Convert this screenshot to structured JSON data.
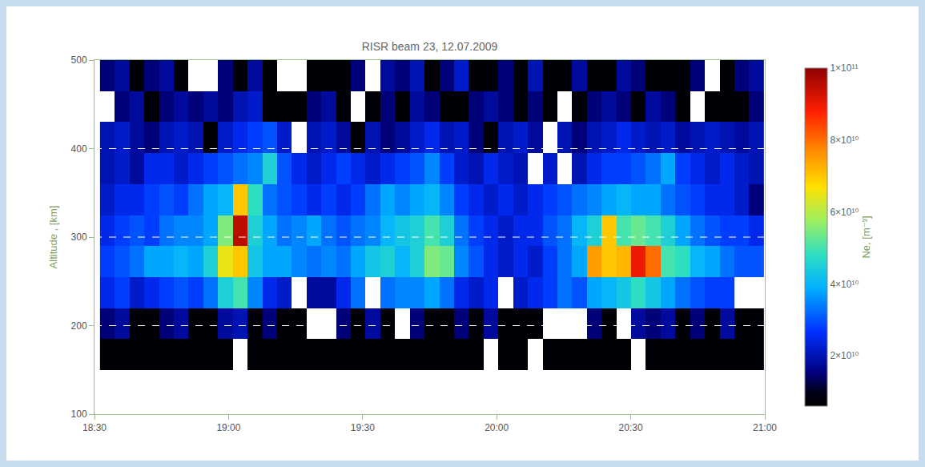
{
  "chart_data": {
    "type": "heatmap",
    "title": "RISR beam 23, 12.07.2009",
    "y_label": "Altitude , [km]",
    "colorbar_title": "Ne, [m⁻³]",
    "x": [
      18.548,
      18.603,
      18.658,
      18.713,
      18.768,
      18.823,
      18.878,
      18.933,
      18.988,
      19.043,
      19.098,
      19.153,
      19.208,
      19.263,
      19.318,
      19.373,
      19.428,
      19.483,
      19.538,
      19.593,
      19.648,
      19.703,
      19.758,
      19.813,
      19.868,
      19.923,
      19.978,
      20.033,
      20.088,
      20.143,
      20.198,
      20.253,
      20.308,
      20.363,
      20.418,
      20.473,
      20.528,
      20.583,
      20.638,
      20.693,
      20.748,
      20.803,
      20.858,
      20.913,
      20.968
    ],
    "y": [
      167.5,
      202.5,
      237.5,
      272.5,
      307.5,
      342.5,
      377.5,
      412.5,
      447.5,
      482.5
    ],
    "z": [
      [
        7000000000.0,
        7000000000.0,
        7000000000.0,
        7000000000.0,
        7000000000.0,
        7000000000.0,
        7000000000.0,
        7000000000.0,
        7000000000.0,
        null,
        7000000000.0,
        7000000000.0,
        7000000000.0,
        7000000000.0,
        7000000000.0,
        7000000000.0,
        7000000000.0,
        7000000000.0,
        7000000000.0,
        7000000000.0,
        7000000000.0,
        7000000000.0,
        7000000000.0,
        7000000000.0,
        7000000000.0,
        7000000000.0,
        null,
        7000000000.0,
        7000000000.0,
        null,
        7000000000.0,
        7000000000.0,
        7000000000.0,
        7000000000.0,
        7000000000.0,
        7000000000.0,
        null,
        7000000000.0,
        7000000000.0,
        7000000000.0,
        7000000000.0,
        7000000000.0,
        7000000000.0,
        7000000000.0,
        7000000000.0
      ],
      [
        15000000000.0,
        18000000000.0,
        7000000000.0,
        7000000000.0,
        15000000000.0,
        18000000000.0,
        7000000000.0,
        7000000000.0,
        18000000000.0,
        20000000000.0,
        7000000000.0,
        15000000000.0,
        7000000000.0,
        7000000000.0,
        null,
        null,
        15000000000.0,
        7000000000.0,
        18000000000.0,
        7000000000.0,
        null,
        15000000000.0,
        7000000000.0,
        7000000000.0,
        15000000000.0,
        7000000000.0,
        18000000000.0,
        7000000000.0,
        7000000000.0,
        7000000000.0,
        null,
        null,
        null,
        15000000000.0,
        7000000000.0,
        null,
        18000000000.0,
        15000000000.0,
        18000000000.0,
        7000000000.0,
        15000000000.0,
        7000000000.0,
        18000000000.0,
        7000000000.0,
        7000000000.0
      ],
      [
        25000000000.0,
        28000000000.0,
        22000000000.0,
        25000000000.0,
        28000000000.0,
        30000000000.0,
        28000000000.0,
        33000000000.0,
        45000000000.0,
        50000000000.0,
        35000000000.0,
        25000000000.0,
        22000000000.0,
        null,
        18000000000.0,
        18000000000.0,
        25000000000.0,
        33000000000.0,
        null,
        33000000000.0,
        35000000000.0,
        35000000000.0,
        38000000000.0,
        33000000000.0,
        25000000000.0,
        22000000000.0,
        25000000000.0,
        null,
        22000000000.0,
        25000000000.0,
        28000000000.0,
        33000000000.0,
        30000000000.0,
        38000000000.0,
        40000000000.0,
        43000000000.0,
        48000000000.0,
        43000000000.0,
        38000000000.0,
        33000000000.0,
        30000000000.0,
        28000000000.0,
        28000000000.0,
        null,
        null
      ],
      [
        28000000000.0,
        30000000000.0,
        33000000000.0,
        38000000000.0,
        38000000000.0,
        40000000000.0,
        38000000000.0,
        45000000000.0,
        65000000000.0,
        70000000000.0,
        43000000000.0,
        38000000000.0,
        38000000000.0,
        35000000000.0,
        33000000000.0,
        35000000000.0,
        33000000000.0,
        38000000000.0,
        43000000000.0,
        45000000000.0,
        40000000000.0,
        45000000000.0,
        55000000000.0,
        53000000000.0,
        35000000000.0,
        30000000000.0,
        25000000000.0,
        22000000000.0,
        25000000000.0,
        22000000000.0,
        28000000000.0,
        33000000000.0,
        38000000000.0,
        75000000000.0,
        70000000000.0,
        72000000000.0,
        90000000000.0,
        80000000000.0,
        50000000000.0,
        48000000000.0,
        40000000000.0,
        38000000000.0,
        33000000000.0,
        30000000000.0,
        30000000000.0
      ],
      [
        25000000000.0,
        28000000000.0,
        30000000000.0,
        28000000000.0,
        33000000000.0,
        35000000000.0,
        35000000000.0,
        38000000000.0,
        55000000000.0,
        95000000000.0,
        45000000000.0,
        38000000000.0,
        33000000000.0,
        35000000000.0,
        38000000000.0,
        33000000000.0,
        30000000000.0,
        33000000000.0,
        35000000000.0,
        40000000000.0,
        43000000000.0,
        45000000000.0,
        50000000000.0,
        45000000000.0,
        33000000000.0,
        28000000000.0,
        25000000000.0,
        22000000000.0,
        25000000000.0,
        25000000000.0,
        30000000000.0,
        33000000000.0,
        40000000000.0,
        45000000000.0,
        70000000000.0,
        50000000000.0,
        53000000000.0,
        50000000000.0,
        45000000000.0,
        38000000000.0,
        33000000000.0,
        30000000000.0,
        28000000000.0,
        28000000000.0,
        25000000000.0
      ],
      [
        22000000000.0,
        25000000000.0,
        25000000000.0,
        28000000000.0,
        30000000000.0,
        28000000000.0,
        33000000000.0,
        38000000000.0,
        40000000000.0,
        70000000000.0,
        48000000000.0,
        33000000000.0,
        30000000000.0,
        28000000000.0,
        25000000000.0,
        28000000000.0,
        25000000000.0,
        28000000000.0,
        33000000000.0,
        38000000000.0,
        35000000000.0,
        38000000000.0,
        40000000000.0,
        35000000000.0,
        28000000000.0,
        25000000000.0,
        22000000000.0,
        25000000000.0,
        22000000000.0,
        25000000000.0,
        28000000000.0,
        30000000000.0,
        33000000000.0,
        35000000000.0,
        38000000000.0,
        40000000000.0,
        38000000000.0,
        38000000000.0,
        33000000000.0,
        30000000000.0,
        28000000000.0,
        25000000000.0,
        25000000000.0,
        22000000000.0,
        15000000000.0
      ],
      [
        20000000000.0,
        22000000000.0,
        18000000000.0,
        25000000000.0,
        25000000000.0,
        22000000000.0,
        25000000000.0,
        28000000000.0,
        30000000000.0,
        33000000000.0,
        35000000000.0,
        45000000000.0,
        30000000000.0,
        25000000000.0,
        22000000000.0,
        25000000000.0,
        28000000000.0,
        25000000000.0,
        22000000000.0,
        25000000000.0,
        28000000000.0,
        30000000000.0,
        35000000000.0,
        28000000000.0,
        22000000000.0,
        20000000000.0,
        25000000000.0,
        22000000000.0,
        20000000000.0,
        null,
        22000000000.0,
        null,
        20000000000.0,
        25000000000.0,
        28000000000.0,
        28000000000.0,
        30000000000.0,
        33000000000.0,
        38000000000.0,
        28000000000.0,
        25000000000.0,
        22000000000.0,
        25000000000.0,
        22000000000.0,
        20000000000.0
      ],
      [
        20000000000.0,
        22000000000.0,
        18000000000.0,
        15000000000.0,
        20000000000.0,
        22000000000.0,
        20000000000.0,
        7000000000.0,
        22000000000.0,
        25000000000.0,
        28000000000.0,
        30000000000.0,
        22000000000.0,
        null,
        20000000000.0,
        22000000000.0,
        18000000000.0,
        7000000000.0,
        20000000000.0,
        15000000000.0,
        18000000000.0,
        22000000000.0,
        25000000000.0,
        20000000000.0,
        22000000000.0,
        15000000000.0,
        7000000000.0,
        20000000000.0,
        22000000000.0,
        18000000000.0,
        null,
        20000000000.0,
        15000000000.0,
        20000000000.0,
        22000000000.0,
        25000000000.0,
        22000000000.0,
        20000000000.0,
        22000000000.0,
        18000000000.0,
        20000000000.0,
        22000000000.0,
        20000000000.0,
        18000000000.0,
        20000000000.0
      ],
      [
        null,
        15000000000.0,
        18000000000.0,
        7000000000.0,
        15000000000.0,
        18000000000.0,
        15000000000.0,
        18000000000.0,
        15000000000.0,
        20000000000.0,
        22000000000.0,
        7000000000.0,
        7000000000.0,
        7000000000.0,
        15000000000.0,
        18000000000.0,
        7000000000.0,
        null,
        7000000000.0,
        15000000000.0,
        7000000000.0,
        18000000000.0,
        15000000000.0,
        7000000000.0,
        7000000000.0,
        15000000000.0,
        18000000000.0,
        15000000000.0,
        7000000000.0,
        15000000000.0,
        7000000000.0,
        null,
        7000000000.0,
        15000000000.0,
        18000000000.0,
        15000000000.0,
        7000000000.0,
        18000000000.0,
        15000000000.0,
        7000000000.0,
        null,
        7000000000.0,
        7000000000.0,
        7000000000.0,
        15000000000.0
      ],
      [
        15000000000.0,
        18000000000.0,
        7000000000.0,
        15000000000.0,
        18000000000.0,
        7000000000.0,
        null,
        null,
        15000000000.0,
        7000000000.0,
        18000000000.0,
        7000000000.0,
        null,
        null,
        7000000000.0,
        7000000000.0,
        7000000000.0,
        15000000000.0,
        null,
        18000000000.0,
        15000000000.0,
        20000000000.0,
        7000000000.0,
        15000000000.0,
        22000000000.0,
        7000000000.0,
        7000000000.0,
        15000000000.0,
        7000000000.0,
        20000000000.0,
        7000000000.0,
        7000000000.0,
        18000000000.0,
        7000000000.0,
        7000000000.0,
        18000000000.0,
        15000000000.0,
        7000000000.0,
        7000000000.0,
        7000000000.0,
        15000000000.0,
        null,
        7000000000.0,
        15000000000.0,
        18000000000.0
      ]
    ],
    "xlim": [
      18.5,
      21.0
    ],
    "xticks": [
      {
        "value": 18.5,
        "label": "18:30"
      },
      {
        "value": 19.0,
        "label": "19:00"
      },
      {
        "value": 19.5,
        "label": "19:30"
      },
      {
        "value": 20.0,
        "label": "20:00"
      },
      {
        "value": 20.5,
        "label": "20:30"
      },
      {
        "value": 21.0,
        "label": "21:00"
      }
    ],
    "ylim": [
      100,
      500
    ],
    "yticks": [
      100,
      200,
      300,
      400,
      500
    ],
    "zlim": [
      6000000000.0,
      100000000000.0
    ],
    "zticks": [
      {
        "value": 20000000000.0,
        "label": "2×10¹⁰"
      },
      {
        "value": 40000000000.0,
        "label": "4×10¹⁰"
      },
      {
        "value": 60000000000.0,
        "label": "6×10¹⁰"
      },
      {
        "value": 80000000000.0,
        "label": "8×10¹⁰"
      },
      {
        "value": 100000000000.0,
        "label": "1×10¹¹"
      }
    ],
    "grid": true
  }
}
